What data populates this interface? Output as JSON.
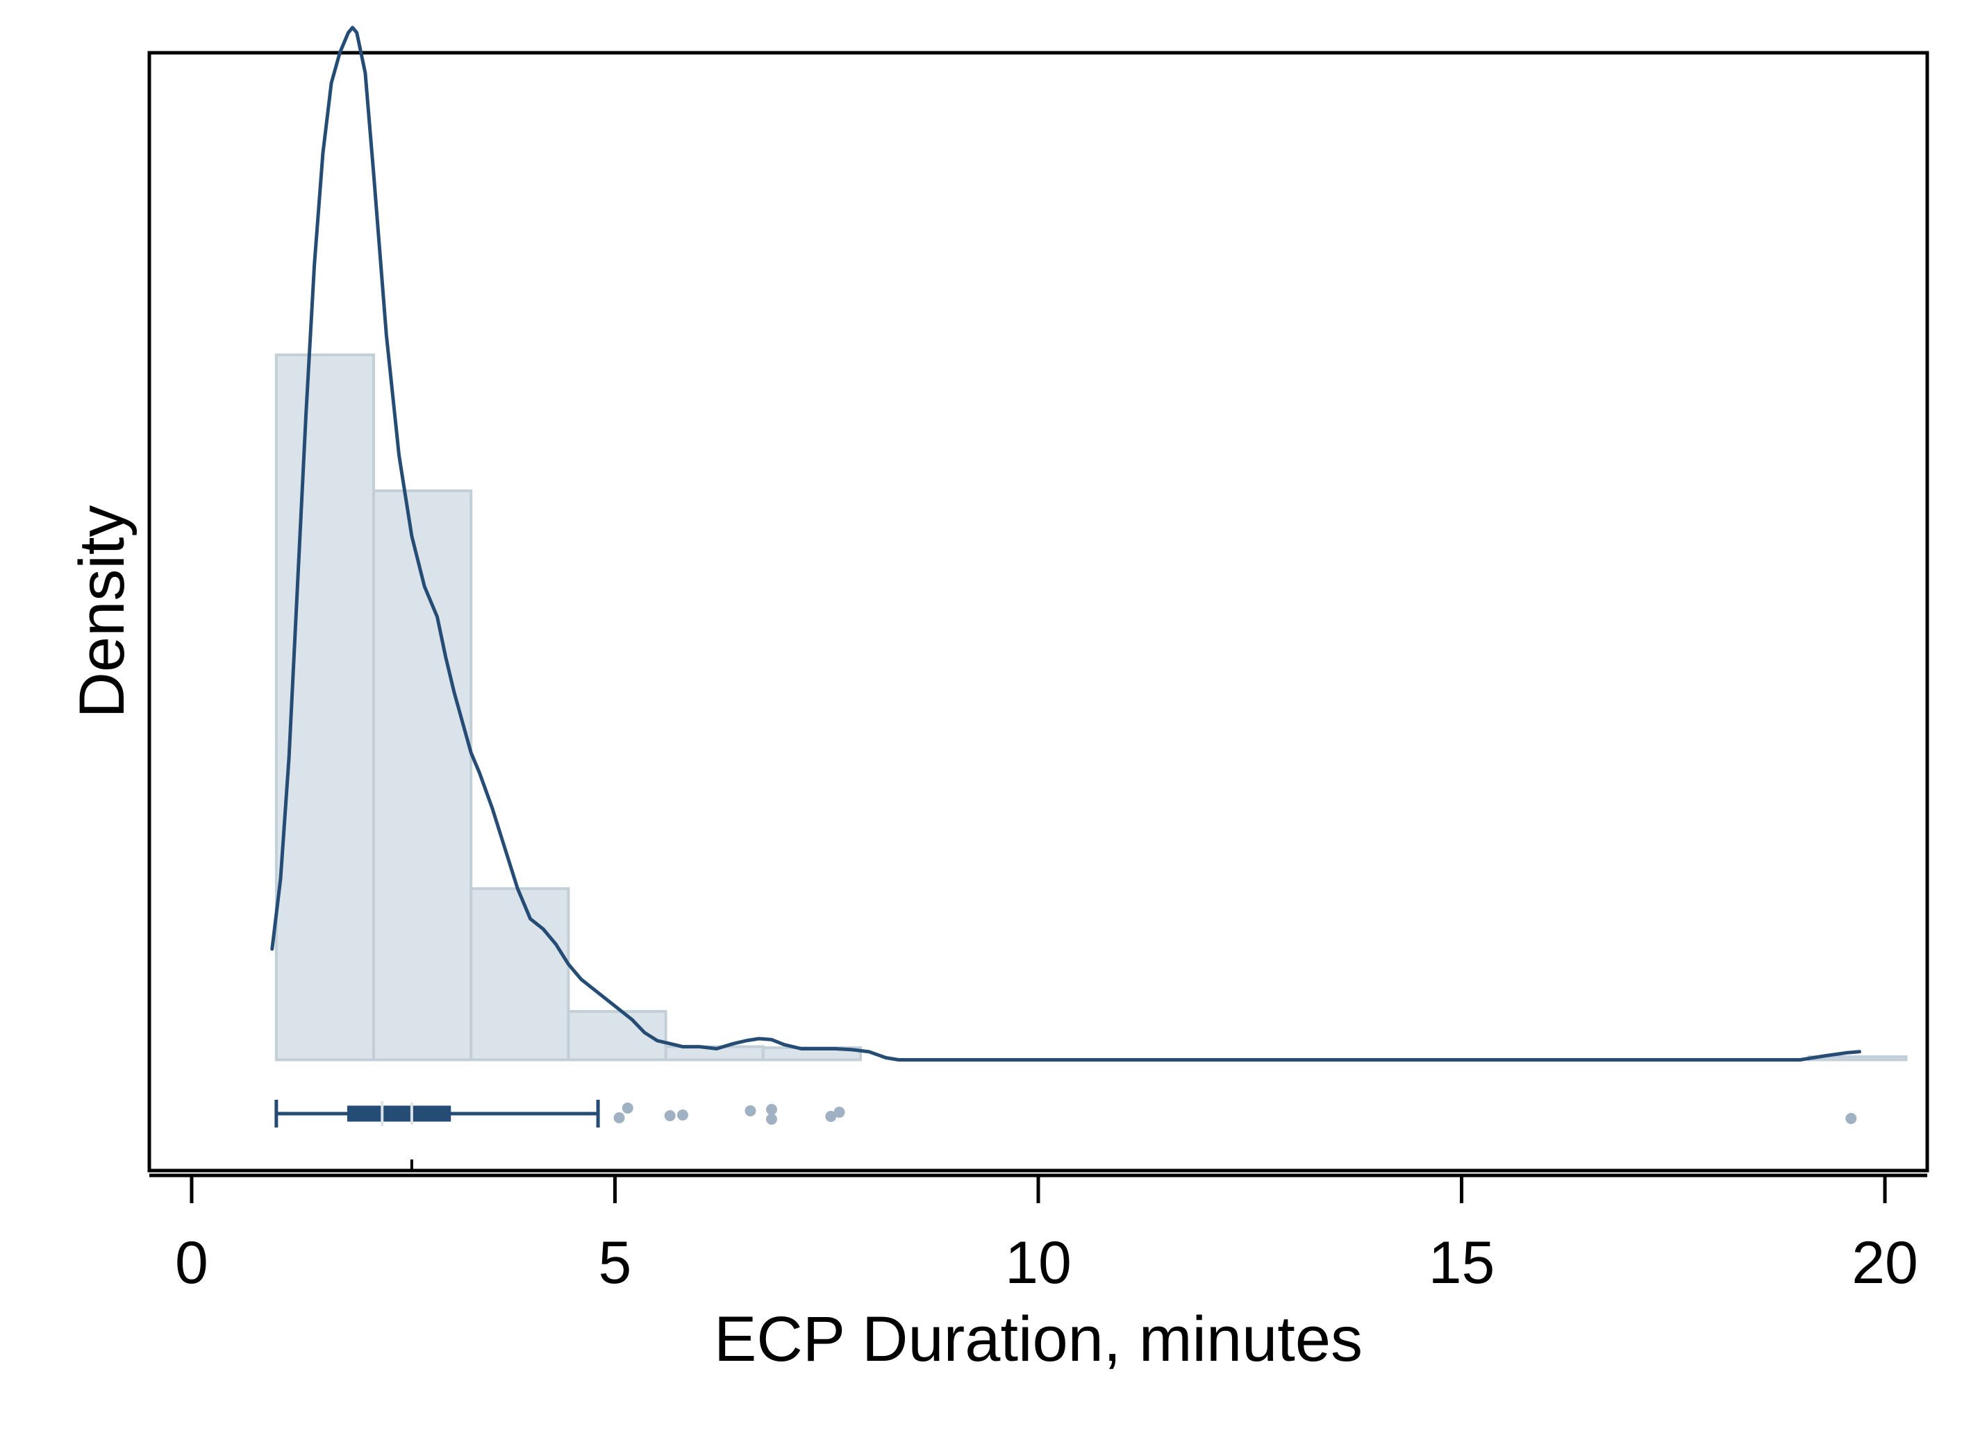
{
  "chart_data": {
    "type": "bar",
    "subtype": "histogram with kernel density overlay and horizontal box plot",
    "title": "",
    "xlabel": "ECP Duration, minutes",
    "ylabel": "Density",
    "xlim": [
      -0.5,
      20.5
    ],
    "ylim": [
      -0.11,
      1.0
    ],
    "x_ticks": [
      0,
      5,
      10,
      15,
      20
    ],
    "x_tick_labels": [
      "0",
      "5",
      "10",
      "15",
      "20"
    ],
    "y_tick_labels_shown": false,
    "grid": false,
    "legend": "none",
    "histogram": {
      "bin_edges": [
        1.0,
        2.15,
        3.3,
        4.45,
        5.6,
        6.75,
        7.9,
        19.1,
        20.25
      ],
      "density": [
        0.7,
        0.565,
        0.17,
        0.048,
        0.013,
        0.012,
        0.0,
        0.003
      ],
      "note_last_bins": "no bars between 7.9 and 19.1"
    },
    "kde": {
      "x": [
        0.95,
        1.05,
        1.15,
        1.25,
        1.35,
        1.45,
        1.55,
        1.65,
        1.75,
        1.85,
        1.9,
        1.95,
        2.05,
        2.15,
        2.3,
        2.45,
        2.6,
        2.75,
        2.9,
        3.0,
        3.1,
        3.2,
        3.3,
        3.4,
        3.55,
        3.7,
        3.85,
        4.0,
        4.15,
        4.3,
        4.45,
        4.6,
        4.75,
        4.9,
        5.05,
        5.2,
        5.35,
        5.5,
        5.65,
        5.8,
        6.0,
        6.2,
        6.4,
        6.55,
        6.7,
        6.85,
        7.0,
        7.2,
        7.4,
        7.6,
        7.8,
        8.0,
        8.2,
        8.35,
        9.0,
        12.0,
        15.0,
        18.0,
        19.0,
        19.3,
        19.55,
        19.7
      ],
      "y": [
        0.11,
        0.18,
        0.3,
        0.47,
        0.64,
        0.79,
        0.9,
        0.97,
        1.0,
        1.02,
        1.025,
        1.02,
        0.98,
        0.88,
        0.72,
        0.6,
        0.52,
        0.47,
        0.44,
        0.4,
        0.365,
        0.335,
        0.305,
        0.285,
        0.25,
        0.21,
        0.17,
        0.14,
        0.13,
        0.115,
        0.095,
        0.08,
        0.07,
        0.06,
        0.05,
        0.04,
        0.027,
        0.019,
        0.016,
        0.013,
        0.013,
        0.011,
        0.016,
        0.019,
        0.021,
        0.02,
        0.015,
        0.011,
        0.011,
        0.011,
        0.01,
        0.008,
        0.002,
        0.0,
        0.0,
        0.0,
        0.0,
        0.0,
        0.0,
        0.004,
        0.007,
        0.008
      ]
    },
    "box_plot": {
      "whisker_low": 1.0,
      "q1": 1.85,
      "median": 2.25,
      "mean": 2.6,
      "q3": 3.05,
      "whisker_high": 4.8,
      "outliers": [
        5.05,
        5.15,
        5.65,
        5.8,
        6.6,
        6.85,
        6.85,
        7.55,
        7.65,
        19.6
      ]
    },
    "colors": {
      "bar_fill": "#dbe3ea",
      "bar_edge": "#c3cfd8",
      "line": "#254c74",
      "outlier": "#9fb1c3",
      "frame": "#000000"
    }
  }
}
